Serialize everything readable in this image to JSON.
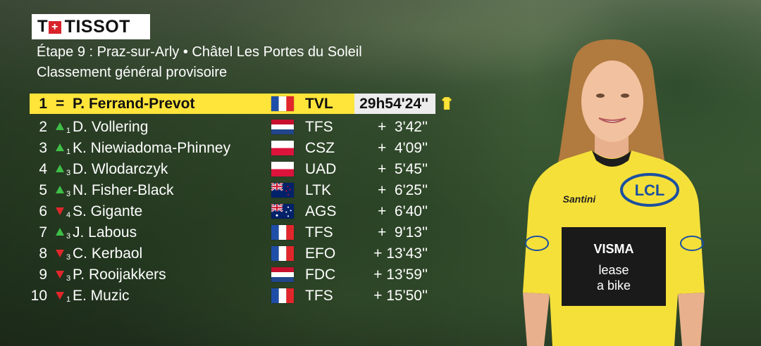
{
  "brand": "TISSOT",
  "stage_title": "Étape 9 : Praz-sur-Arly • Châtel Les Portes du Soleil",
  "classification_title": "Classement général provisoire",
  "colors": {
    "leader_bar": "#ffe43a",
    "time_box": "#ececec",
    "up": "#3fbf47",
    "down": "#e1262b"
  },
  "rows": [
    {
      "rank": "1",
      "move": "=",
      "move_n": "",
      "name": "P. Ferrand-Prevot",
      "flag": "france",
      "team": "TVL",
      "time": "29h54'24''"
    },
    {
      "rank": "2",
      "move": "up",
      "move_n": "1",
      "name": "D. Vollering",
      "flag": "netherlands",
      "team": "TFS",
      "time": "+  3'42''"
    },
    {
      "rank": "3",
      "move": "up",
      "move_n": "1",
      "name": "K. Niewiadoma-Phinney",
      "flag": "poland",
      "team": "CSZ",
      "time": "+  4'09''"
    },
    {
      "rank": "4",
      "move": "up",
      "move_n": "3",
      "name": "D. Wlodarczyk",
      "flag": "poland",
      "team": "UAD",
      "time": "+  5'45''"
    },
    {
      "rank": "5",
      "move": "up",
      "move_n": "3",
      "name": "N. Fisher-Black",
      "flag": "new-zealand",
      "team": "LTK",
      "time": "+  6'25''"
    },
    {
      "rank": "6",
      "move": "down",
      "move_n": "4",
      "name": "S. Gigante",
      "flag": "australia",
      "team": "AGS",
      "time": "+  6'40''"
    },
    {
      "rank": "7",
      "move": "up",
      "move_n": "3",
      "name": "J. Labous",
      "flag": "france",
      "team": "TFS",
      "time": "+  9'13''"
    },
    {
      "rank": "8",
      "move": "down",
      "move_n": "3",
      "name": "C. Kerbaol",
      "flag": "france",
      "team": "EFO",
      "time": "+ 13'43''"
    },
    {
      "rank": "9",
      "move": "down",
      "move_n": "3",
      "name": "P. Rooijakkers",
      "flag": "netherlands",
      "team": "FDC",
      "time": "+ 13'59''"
    },
    {
      "rank": "10",
      "move": "down",
      "move_n": "1",
      "name": "E. Muzic",
      "flag": "france",
      "team": "TFS",
      "time": "+ 15'50''"
    }
  ],
  "jersey_text": {
    "sponsor_main": "LCL",
    "maker": "Santini",
    "team_line1": "VISMA",
    "team_line2": "lease",
    "team_line3": "a bike"
  }
}
